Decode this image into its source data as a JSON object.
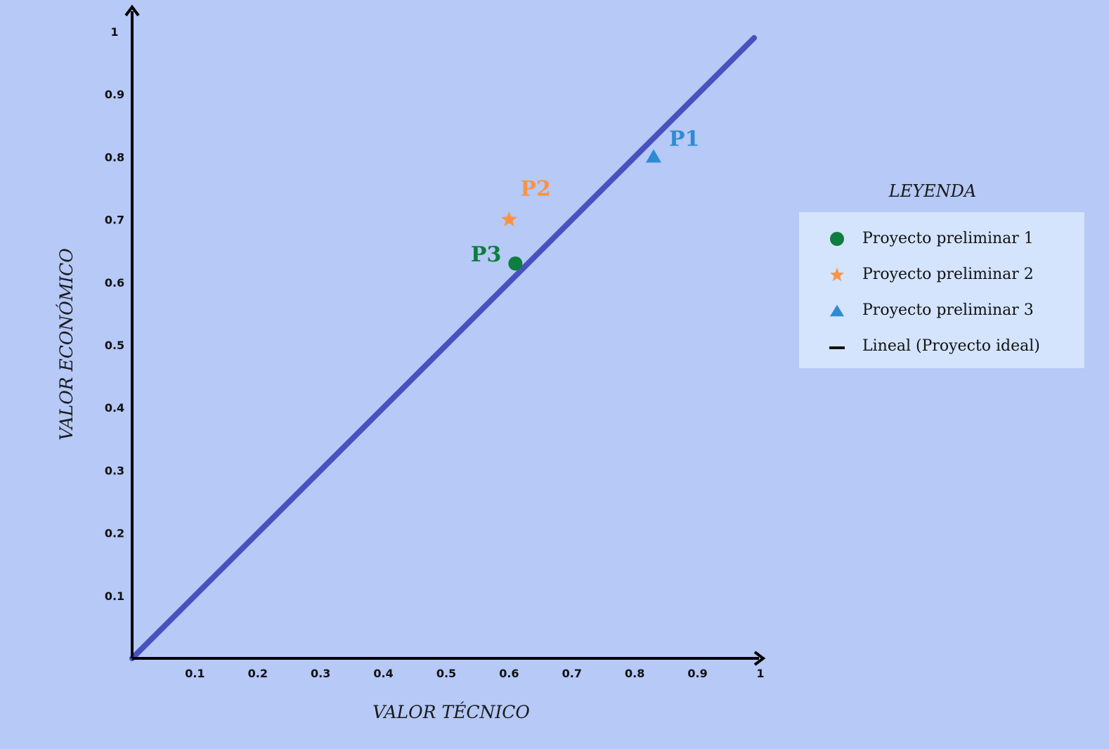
{
  "chart_data": {
    "type": "scatter",
    "xlabel": "VALOR TÉCNICO",
    "ylabel": "VALOR ECONÓMICO",
    "xlim": [
      0,
      1
    ],
    "ylim": [
      0,
      1
    ],
    "x_ticks": [
      "0.1",
      "0.2",
      "0.3",
      "0.4",
      "0.5",
      "0.6",
      "0.7",
      "0.8",
      "0.9",
      "1"
    ],
    "y_ticks": [
      "0.1",
      "0.2",
      "0.3",
      "0.4",
      "0.5",
      "0.6",
      "0.7",
      "0.8",
      "0.9",
      "1"
    ],
    "grid": false,
    "legend_placement": "right",
    "series": [
      {
        "name": "Proyecto preliminar 1",
        "marker": "circle",
        "color": "#0e7d3e",
        "point_label": "P3",
        "x": 0.61,
        "y": 0.63
      },
      {
        "name": "Proyecto preliminar 2",
        "marker": "star",
        "color": "#f79447",
        "point_label": "P2",
        "x": 0.6,
        "y": 0.7
      },
      {
        "name": "Proyecto preliminar 3",
        "marker": "triangle",
        "color": "#2e8bd3",
        "point_label": "P1",
        "x": 0.83,
        "y": 0.8
      },
      {
        "name": "Lineal (Proyecto ideal)",
        "marker": "line",
        "color": "#4752bf",
        "line_color_legend": "#111111",
        "x": [
          0,
          0.99
        ],
        "y": [
          0,
          0.99
        ]
      }
    ]
  },
  "legend": {
    "title": "LEYENDA",
    "items": [
      {
        "label": "Proyecto preliminar 1"
      },
      {
        "label": "Proyecto preliminar 2"
      },
      {
        "label": "Proyecto preliminar 3"
      },
      {
        "label": "Lineal (Proyecto ideal)"
      }
    ]
  }
}
